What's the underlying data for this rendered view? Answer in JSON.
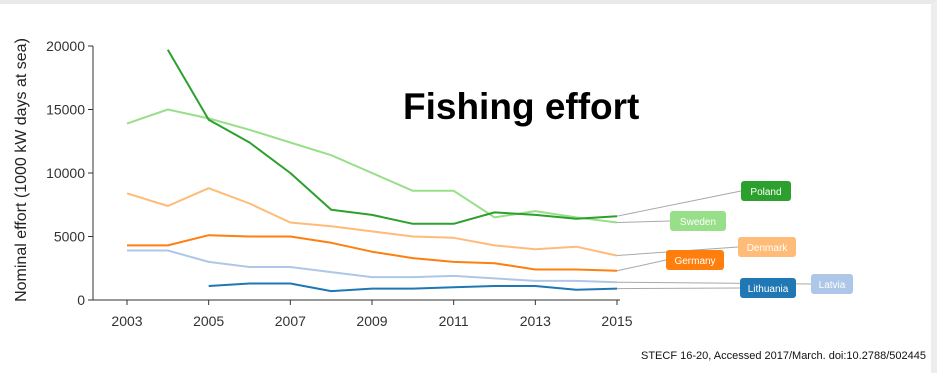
{
  "title": "Fishing effort",
  "caption": "STECF 16-20, Accessed 2017/March. doi:10.2788/502445",
  "chart_data": {
    "type": "line",
    "ylabel": "Nominal effort (1000 kW days at sea)",
    "xlabel": "",
    "xlim": [
      2003,
      2015
    ],
    "ylim": [
      0,
      20000
    ],
    "xticks": [
      2003,
      2005,
      2007,
      2009,
      2011,
      2013,
      2015
    ],
    "yticks": [
      0,
      5000,
      10000,
      15000,
      20000
    ],
    "ytick_labels": [
      "0",
      "5000",
      "10000",
      "15000",
      "20000"
    ],
    "grid": false,
    "legend": "direct labels at right end of lines",
    "series": [
      {
        "name": "Sweden",
        "color": "#98df8a",
        "x": [
          2003,
          2004,
          2005,
          2006,
          2007,
          2008,
          2009,
          2010,
          2011,
          2012,
          2013,
          2014,
          2015
        ],
        "values": [
          13900,
          15000,
          14300,
          13400,
          12400,
          11400,
          10000,
          8600,
          8600,
          6500,
          7000,
          6500,
          6100
        ]
      },
      {
        "name": "Poland",
        "color": "#2ca02c",
        "x": [
          2004,
          2005,
          2006,
          2007,
          2008,
          2009,
          2010,
          2011,
          2012,
          2013,
          2014,
          2015
        ],
        "values": [
          19700,
          14200,
          12400,
          10000,
          7100,
          6700,
          6000,
          6000,
          6900,
          6700,
          6400,
          6600
        ]
      },
      {
        "name": "Denmark",
        "color": "#ffbb78",
        "x": [
          2003,
          2004,
          2005,
          2006,
          2007,
          2008,
          2009,
          2010,
          2011,
          2012,
          2013,
          2014,
          2015
        ],
        "values": [
          8400,
          7400,
          8800,
          7600,
          6100,
          5800,
          5400,
          5000,
          4900,
          4300,
          4000,
          4200,
          3500
        ]
      },
      {
        "name": "Germany",
        "color": "#ff7f0e",
        "x": [
          2003,
          2004,
          2005,
          2006,
          2007,
          2008,
          2009,
          2010,
          2011,
          2012,
          2013,
          2014,
          2015
        ],
        "values": [
          4300,
          4300,
          5100,
          5000,
          5000,
          4500,
          3800,
          3300,
          3000,
          2900,
          2400,
          2400,
          2300
        ]
      },
      {
        "name": "Latvia",
        "color": "#aec7e8",
        "x": [
          2003,
          2004,
          2005,
          2006,
          2007,
          2008,
          2009,
          2010,
          2011,
          2012,
          2013,
          2014,
          2015
        ],
        "values": [
          3900,
          3900,
          3000,
          2600,
          2600,
          2200,
          1800,
          1800,
          1900,
          1700,
          1500,
          1500,
          1400
        ]
      },
      {
        "name": "Lithuania",
        "color": "#1f77b4",
        "x": [
          2005,
          2006,
          2007,
          2008,
          2009,
          2010,
          2011,
          2012,
          2013,
          2014,
          2015
        ],
        "values": [
          1100,
          1300,
          1300,
          700,
          900,
          900,
          1000,
          1100,
          1100,
          800,
          900
        ]
      }
    ]
  }
}
